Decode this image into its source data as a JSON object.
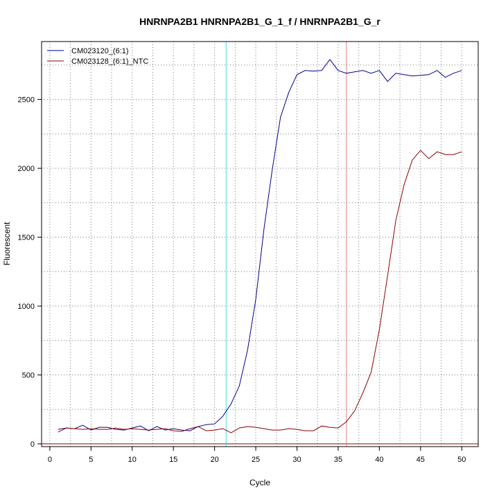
{
  "chart_data": {
    "type": "line",
    "title": "HNRNPA2B1  HNRNPA2B1_G_1_f / HNRNPA2B1_G_r",
    "xlabel": "Cycle",
    "ylabel": "Fluorescent",
    "xlim": [
      -1,
      52
    ],
    "ylim": [
      -20,
      2920
    ],
    "x_ticks": [
      0,
      5,
      10,
      15,
      20,
      25,
      30,
      35,
      40,
      45,
      50
    ],
    "y_ticks": [
      0,
      500,
      1000,
      1500,
      2000,
      2500
    ],
    "grid": true,
    "grid_style": "dotted",
    "legend_position": "top-left",
    "threshold_y": 0,
    "threshold_color": "#8b0000",
    "vertical_lines": [
      {
        "x": 21.4,
        "color": "#40e0e0"
      },
      {
        "x": 36.0,
        "color": "#e08080"
      }
    ],
    "x": [
      1,
      2,
      3,
      4,
      5,
      6,
      7,
      8,
      9,
      10,
      11,
      12,
      13,
      14,
      15,
      16,
      17,
      18,
      19,
      20,
      21,
      22,
      23,
      24,
      25,
      26,
      27,
      28,
      29,
      30,
      31,
      32,
      33,
      34,
      35,
      36,
      37,
      38,
      39,
      40,
      41,
      42,
      43,
      44,
      45,
      46,
      47,
      48,
      49,
      50
    ],
    "series": [
      {
        "name": "CM023120_(6:1)",
        "color": "#00008b",
        "values": [
          105,
          115,
          110,
          135,
          100,
          120,
          120,
          105,
          100,
          115,
          130,
          95,
          125,
          100,
          110,
          100,
          95,
          125,
          140,
          145,
          200,
          290,
          420,
          680,
          1050,
          1560,
          1990,
          2370,
          2550,
          2680,
          2710,
          2705,
          2710,
          2790,
          2710,
          2690,
          2700,
          2710,
          2690,
          2710,
          2630,
          2690,
          2680,
          2670,
          2675,
          2680,
          2710,
          2660,
          2690,
          2710
        ]
      },
      {
        "name": "CM023128_(6:1)_NTC",
        "color": "#8b0000",
        "values": [
          85,
          115,
          110,
          105,
          110,
          105,
          105,
          115,
          105,
          110,
          105,
          100,
          105,
          110,
          95,
          90,
          110,
          125,
          95,
          100,
          110,
          80,
          115,
          125,
          120,
          110,
          100,
          100,
          110,
          105,
          95,
          95,
          130,
          120,
          115,
          160,
          240,
          370,
          520,
          830,
          1220,
          1620,
          1880,
          2060,
          2130,
          2070,
          2120,
          2100,
          2100,
          2120
        ]
      }
    ]
  }
}
